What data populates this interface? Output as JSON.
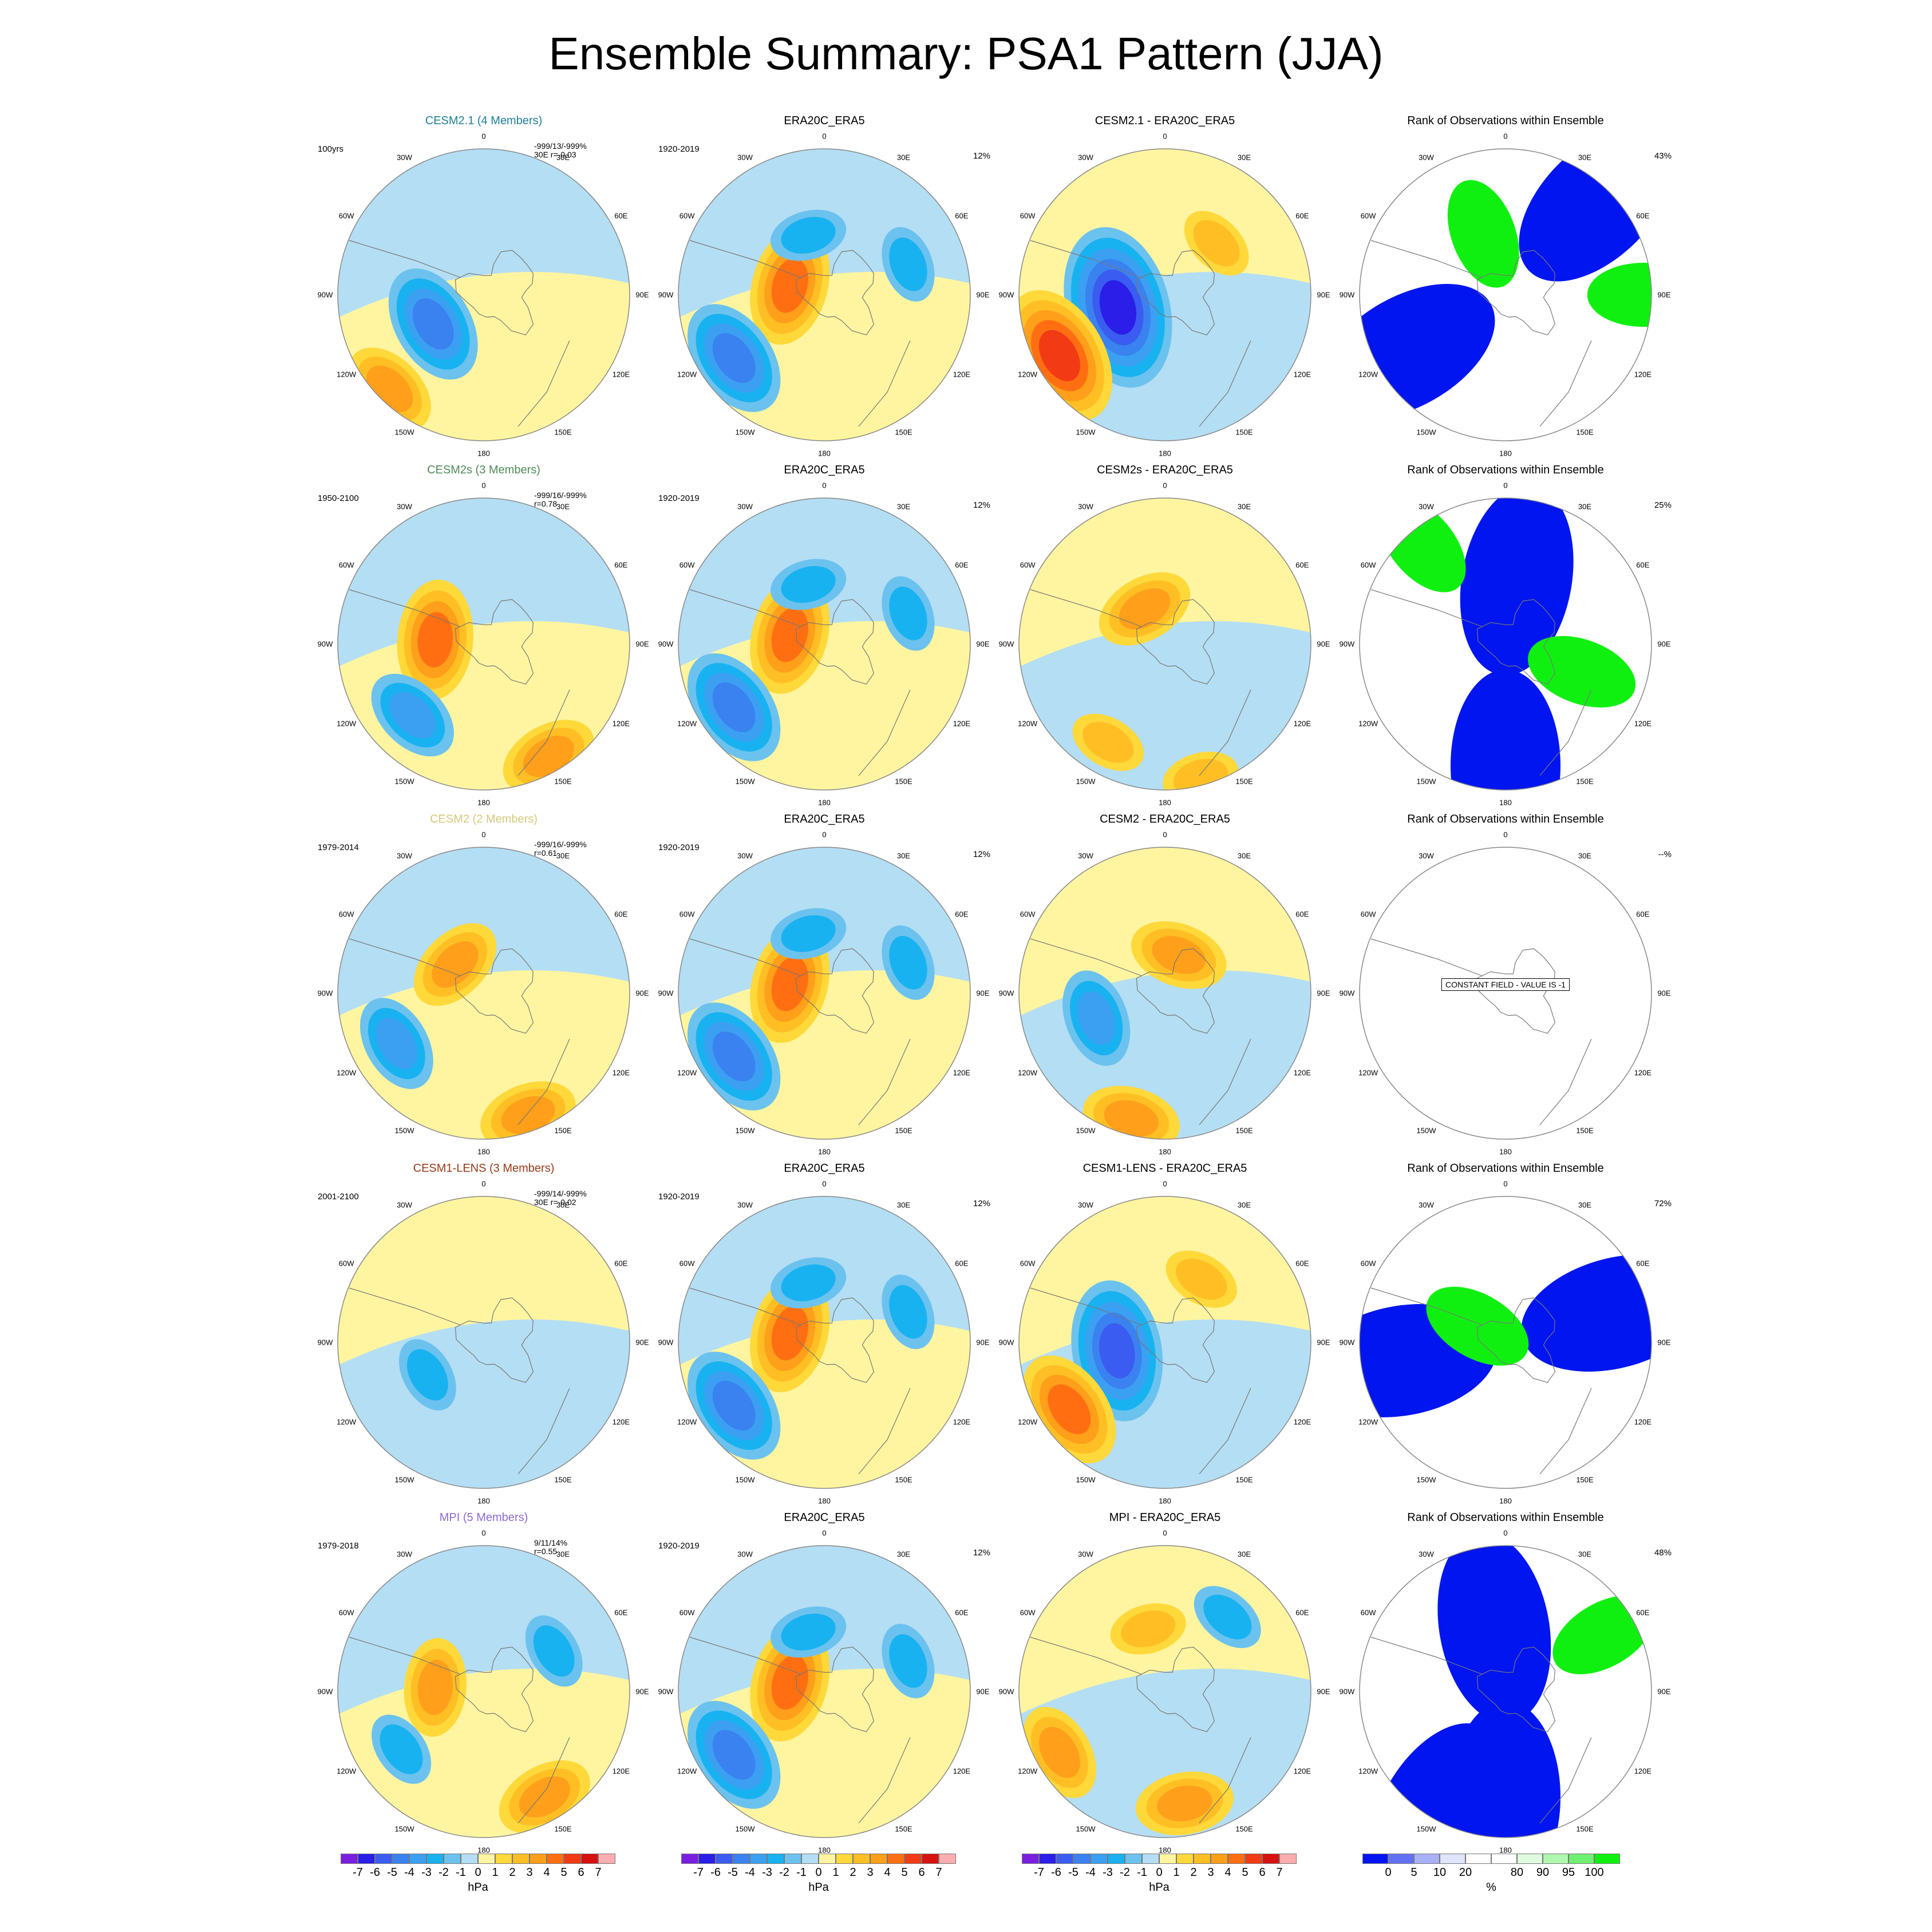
{
  "figure_title": "Ensemble Summary: PSA1 Pattern (JJA)",
  "map_labels": [
    "0",
    "30E",
    "60E",
    "90E",
    "120E",
    "150E",
    "180",
    "150W",
    "120W",
    "90W",
    "60W",
    "30W"
  ],
  "colors": {
    "hpa_levels": [
      "#7a1fe0",
      "#2a1ee8",
      "#3a5cf0",
      "#3a82f0",
      "#3ca0f2",
      "#19b2f0",
      "#6cc2ee",
      "#b4def4",
      "#fff5a0",
      "#ffd83a",
      "#ffbf24",
      "#ff9f1a",
      "#ff6f12",
      "#f23a14",
      "#d8120f",
      "#ffadb0"
    ],
    "rank_levels": [
      "#0015f0",
      "#6470f4",
      "#a8b0f8",
      "#e0e4fc",
      "#ffffff",
      "#ffffff",
      "#e0fce0",
      "#b0f8b0",
      "#70f070",
      "#10f010"
    ],
    "model_titles": [
      "#1f7e98",
      "#4f8a58",
      "#d4c97a",
      "#9a3a18",
      "#8a6ad8"
    ]
  },
  "chart_data": {
    "type": "polar_map_grid",
    "rows": [
      {
        "model": "CESM2.1 (4 Members)",
        "model_years": "100yrs",
        "model_stats_1": "-999/13/-999%",
        "model_stats_2": "30E r=-0.03",
        "obs_title": "ERA20C_ERA5",
        "obs_years": "1920-2019",
        "obs_pct": "12%",
        "diff_title": "CESM2.1 - ERA20C_ERA5",
        "rank_title": "Rank of Observations within Ensemble",
        "rank_pct": "43%",
        "model_features": [
          [
            -120,
            36,
            4,
            "neg"
          ],
          [
            -135,
            82,
            3,
            "pos"
          ]
        ],
        "diff_features": [
          [
            -105,
            30,
            6,
            "neg"
          ],
          [
            -120,
            75,
            5,
            "pos"
          ],
          [
            45,
            45,
            2,
            "pos"
          ]
        ],
        "rank_features": [
          [
            45,
            80,
            "blue"
          ],
          [
            -120,
            70,
            "blue"
          ],
          [
            90,
            85,
            "green"
          ],
          [
            -20,
            40,
            "green"
          ]
        ]
      },
      {
        "model": "CESM2s (3 Members)",
        "model_years": "1950-2100",
        "model_stats_1": "-999/16/-999%",
        "model_stats_2": "r=0.78",
        "obs_title": "ERA20C_ERA5",
        "obs_years": "1920-2019",
        "obs_pct": "12%",
        "diff_title": "CESM2s - ERA20C_ERA5",
        "rank_title": "Rank of Observations within Ensemble",
        "rank_pct": "25%",
        "model_features": [
          [
            -85,
            30,
            4,
            "pos"
          ],
          [
            -135,
            62,
            3,
            "neg"
          ],
          [
            150,
            80,
            3,
            "pos"
          ]
        ],
        "diff_features": [
          [
            -30,
            25,
            3,
            "pos"
          ],
          [
            -150,
            70,
            2,
            "pos"
          ],
          [
            165,
            85,
            2,
            "pos"
          ]
        ],
        "rank_features": [
          [
            180,
            75,
            "blue"
          ],
          [
            10,
            40,
            "blue"
          ],
          [
            -40,
            80,
            "green"
          ],
          [
            110,
            50,
            "green"
          ]
        ]
      },
      {
        "model": "CESM2 (2 Members)",
        "model_years": "1979-2014",
        "model_stats_1": "-999/16/-999%",
        "model_stats_2": "r=0.61",
        "obs_title": "ERA20C_ERA5",
        "obs_years": "1920-2019",
        "obs_pct": "12%",
        "diff_title": "CESM2 - ERA20C_ERA5",
        "rank_title": "Rank of Observations within Ensemble",
        "rank_pct": "--%",
        "rank_note": "CONSTANT FIELD - VALUE IS -1",
        "model_features": [
          [
            -120,
            62,
            3,
            "neg"
          ],
          [
            -45,
            25,
            3,
            "pos"
          ],
          [
            160,
            80,
            3,
            "pos"
          ]
        ],
        "diff_features": [
          [
            -110,
            45,
            3,
            "neg"
          ],
          [
            20,
            25,
            3,
            "pos"
          ],
          [
            -165,
            80,
            3,
            "pos"
          ]
        ],
        "rank_features": []
      },
      {
        "model": "CESM1-LENS (3 Members)",
        "model_years": "2001-2100",
        "model_stats_1": "-999/14/-999%",
        "model_stats_2": "30E r=-0.02",
        "obs_title": "ERA20C_ERA5",
        "obs_years": "1920-2019",
        "obs_pct": "12%",
        "diff_title": "CESM1-LENS - ERA20C_ERA5",
        "rank_title": "Rank of Observations within Ensemble",
        "rank_pct": "72%",
        "model_features": [
          [
            -120,
            40,
            2,
            "neg"
          ]
        ],
        "diff_features": [
          [
            -100,
            30,
            5,
            "neg"
          ],
          [
            -125,
            72,
            4,
            "pos"
          ],
          [
            30,
            45,
            2,
            "pos"
          ]
        ],
        "rank_features": [
          [
            -100,
            65,
            "blue"
          ],
          [
            75,
            70,
            "blue"
          ],
          [
            -60,
            20,
            "green"
          ]
        ]
      },
      {
        "model": "MPI (5 Members)",
        "model_years": "1979-2018",
        "model_stats_1": "9/11/14%",
        "model_stats_2": "r=0.55",
        "obs_title": "ERA20C_ERA5",
        "obs_years": "1920-2019",
        "obs_pct": "12%",
        "diff_title": "MPI - ERA20C_ERA5",
        "rank_title": "Rank of Observations within Ensemble",
        "rank_pct": "48%",
        "model_features": [
          [
            -85,
            30,
            3,
            "pos"
          ],
          [
            -125,
            62,
            2,
            "neg"
          ],
          [
            150,
            75,
            3,
            "pos"
          ],
          [
            60,
            50,
            2,
            "neg"
          ]
        ],
        "diff_features": [
          [
            -120,
            75,
            3,
            "pos"
          ],
          [
            -15,
            40,
            2,
            "pos"
          ],
          [
            40,
            60,
            2,
            "neg"
          ],
          [
            170,
            70,
            3,
            "pos"
          ]
        ],
        "rank_features": [
          [
            -150,
            85,
            "blue"
          ],
          [
            -10,
            40,
            "blue"
          ],
          [
            60,
            70,
            "green"
          ],
          [
            180,
            65,
            "blue"
          ]
        ]
      }
    ],
    "obs_features": [
      [
        -75,
        22,
        4,
        "pos"
      ],
      [
        -125,
        68,
        4,
        "neg"
      ],
      [
        -15,
        38,
        2,
        "neg"
      ],
      [
        70,
        55,
        2,
        "neg"
      ]
    ],
    "hpa_colorbar": {
      "unit": "hPa",
      "ticks": [
        "-7",
        "-6",
        "-5",
        "-4",
        "-3",
        "-2",
        "-1",
        "0",
        "1",
        "2",
        "3",
        "4",
        "5",
        "6",
        "7"
      ]
    },
    "rank_colorbar": {
      "unit": "%",
      "ticks": [
        "0",
        "5",
        "10",
        "20",
        "80",
        "90",
        "95",
        "100"
      ]
    }
  }
}
